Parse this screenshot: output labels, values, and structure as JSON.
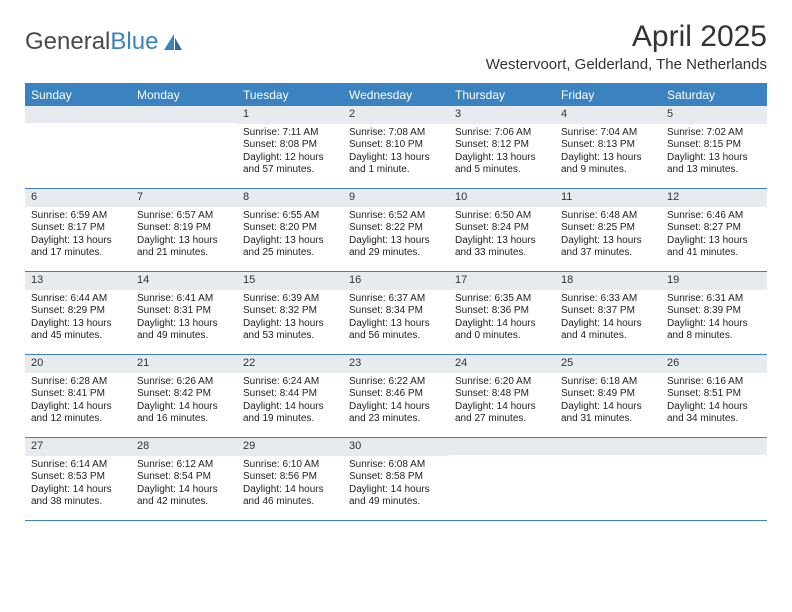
{
  "brand": {
    "part1": "General",
    "part2": "Blue"
  },
  "title": "April 2025",
  "location": "Westervoort, Gelderland, The Netherlands",
  "header_color": "#3b83c0",
  "daynum_bg": "#e7ebef",
  "border_color": "#3b83c0",
  "background_color": "#ffffff",
  "text_color": "#222222",
  "dow_fontsize": 12,
  "cell_fontsize": 10,
  "title_fontsize": 30,
  "location_fontsize": 15,
  "days_of_week": [
    "Sunday",
    "Monday",
    "Tuesday",
    "Wednesday",
    "Thursday",
    "Friday",
    "Saturday"
  ],
  "weeks": [
    [
      {
        "n": "",
        "sunrise": "",
        "sunset": "",
        "daylight": ""
      },
      {
        "n": "",
        "sunrise": "",
        "sunset": "",
        "daylight": ""
      },
      {
        "n": "1",
        "sunrise": "Sunrise: 7:11 AM",
        "sunset": "Sunset: 8:08 PM",
        "daylight": "Daylight: 12 hours and 57 minutes."
      },
      {
        "n": "2",
        "sunrise": "Sunrise: 7:08 AM",
        "sunset": "Sunset: 8:10 PM",
        "daylight": "Daylight: 13 hours and 1 minute."
      },
      {
        "n": "3",
        "sunrise": "Sunrise: 7:06 AM",
        "sunset": "Sunset: 8:12 PM",
        "daylight": "Daylight: 13 hours and 5 minutes."
      },
      {
        "n": "4",
        "sunrise": "Sunrise: 7:04 AM",
        "sunset": "Sunset: 8:13 PM",
        "daylight": "Daylight: 13 hours and 9 minutes."
      },
      {
        "n": "5",
        "sunrise": "Sunrise: 7:02 AM",
        "sunset": "Sunset: 8:15 PM",
        "daylight": "Daylight: 13 hours and 13 minutes."
      }
    ],
    [
      {
        "n": "6",
        "sunrise": "Sunrise: 6:59 AM",
        "sunset": "Sunset: 8:17 PM",
        "daylight": "Daylight: 13 hours and 17 minutes."
      },
      {
        "n": "7",
        "sunrise": "Sunrise: 6:57 AM",
        "sunset": "Sunset: 8:19 PM",
        "daylight": "Daylight: 13 hours and 21 minutes."
      },
      {
        "n": "8",
        "sunrise": "Sunrise: 6:55 AM",
        "sunset": "Sunset: 8:20 PM",
        "daylight": "Daylight: 13 hours and 25 minutes."
      },
      {
        "n": "9",
        "sunrise": "Sunrise: 6:52 AM",
        "sunset": "Sunset: 8:22 PM",
        "daylight": "Daylight: 13 hours and 29 minutes."
      },
      {
        "n": "10",
        "sunrise": "Sunrise: 6:50 AM",
        "sunset": "Sunset: 8:24 PM",
        "daylight": "Daylight: 13 hours and 33 minutes."
      },
      {
        "n": "11",
        "sunrise": "Sunrise: 6:48 AM",
        "sunset": "Sunset: 8:25 PM",
        "daylight": "Daylight: 13 hours and 37 minutes."
      },
      {
        "n": "12",
        "sunrise": "Sunrise: 6:46 AM",
        "sunset": "Sunset: 8:27 PM",
        "daylight": "Daylight: 13 hours and 41 minutes."
      }
    ],
    [
      {
        "n": "13",
        "sunrise": "Sunrise: 6:44 AM",
        "sunset": "Sunset: 8:29 PM",
        "daylight": "Daylight: 13 hours and 45 minutes."
      },
      {
        "n": "14",
        "sunrise": "Sunrise: 6:41 AM",
        "sunset": "Sunset: 8:31 PM",
        "daylight": "Daylight: 13 hours and 49 minutes."
      },
      {
        "n": "15",
        "sunrise": "Sunrise: 6:39 AM",
        "sunset": "Sunset: 8:32 PM",
        "daylight": "Daylight: 13 hours and 53 minutes."
      },
      {
        "n": "16",
        "sunrise": "Sunrise: 6:37 AM",
        "sunset": "Sunset: 8:34 PM",
        "daylight": "Daylight: 13 hours and 56 minutes."
      },
      {
        "n": "17",
        "sunrise": "Sunrise: 6:35 AM",
        "sunset": "Sunset: 8:36 PM",
        "daylight": "Daylight: 14 hours and 0 minutes."
      },
      {
        "n": "18",
        "sunrise": "Sunrise: 6:33 AM",
        "sunset": "Sunset: 8:37 PM",
        "daylight": "Daylight: 14 hours and 4 minutes."
      },
      {
        "n": "19",
        "sunrise": "Sunrise: 6:31 AM",
        "sunset": "Sunset: 8:39 PM",
        "daylight": "Daylight: 14 hours and 8 minutes."
      }
    ],
    [
      {
        "n": "20",
        "sunrise": "Sunrise: 6:28 AM",
        "sunset": "Sunset: 8:41 PM",
        "daylight": "Daylight: 14 hours and 12 minutes."
      },
      {
        "n": "21",
        "sunrise": "Sunrise: 6:26 AM",
        "sunset": "Sunset: 8:42 PM",
        "daylight": "Daylight: 14 hours and 16 minutes."
      },
      {
        "n": "22",
        "sunrise": "Sunrise: 6:24 AM",
        "sunset": "Sunset: 8:44 PM",
        "daylight": "Daylight: 14 hours and 19 minutes."
      },
      {
        "n": "23",
        "sunrise": "Sunrise: 6:22 AM",
        "sunset": "Sunset: 8:46 PM",
        "daylight": "Daylight: 14 hours and 23 minutes."
      },
      {
        "n": "24",
        "sunrise": "Sunrise: 6:20 AM",
        "sunset": "Sunset: 8:48 PM",
        "daylight": "Daylight: 14 hours and 27 minutes."
      },
      {
        "n": "25",
        "sunrise": "Sunrise: 6:18 AM",
        "sunset": "Sunset: 8:49 PM",
        "daylight": "Daylight: 14 hours and 31 minutes."
      },
      {
        "n": "26",
        "sunrise": "Sunrise: 6:16 AM",
        "sunset": "Sunset: 8:51 PM",
        "daylight": "Daylight: 14 hours and 34 minutes."
      }
    ],
    [
      {
        "n": "27",
        "sunrise": "Sunrise: 6:14 AM",
        "sunset": "Sunset: 8:53 PM",
        "daylight": "Daylight: 14 hours and 38 minutes."
      },
      {
        "n": "28",
        "sunrise": "Sunrise: 6:12 AM",
        "sunset": "Sunset: 8:54 PM",
        "daylight": "Daylight: 14 hours and 42 minutes."
      },
      {
        "n": "29",
        "sunrise": "Sunrise: 6:10 AM",
        "sunset": "Sunset: 8:56 PM",
        "daylight": "Daylight: 14 hours and 46 minutes."
      },
      {
        "n": "30",
        "sunrise": "Sunrise: 6:08 AM",
        "sunset": "Sunset: 8:58 PM",
        "daylight": "Daylight: 14 hours and 49 minutes."
      },
      {
        "n": "",
        "sunrise": "",
        "sunset": "",
        "daylight": ""
      },
      {
        "n": "",
        "sunrise": "",
        "sunset": "",
        "daylight": ""
      },
      {
        "n": "",
        "sunrise": "",
        "sunset": "",
        "daylight": ""
      }
    ]
  ]
}
